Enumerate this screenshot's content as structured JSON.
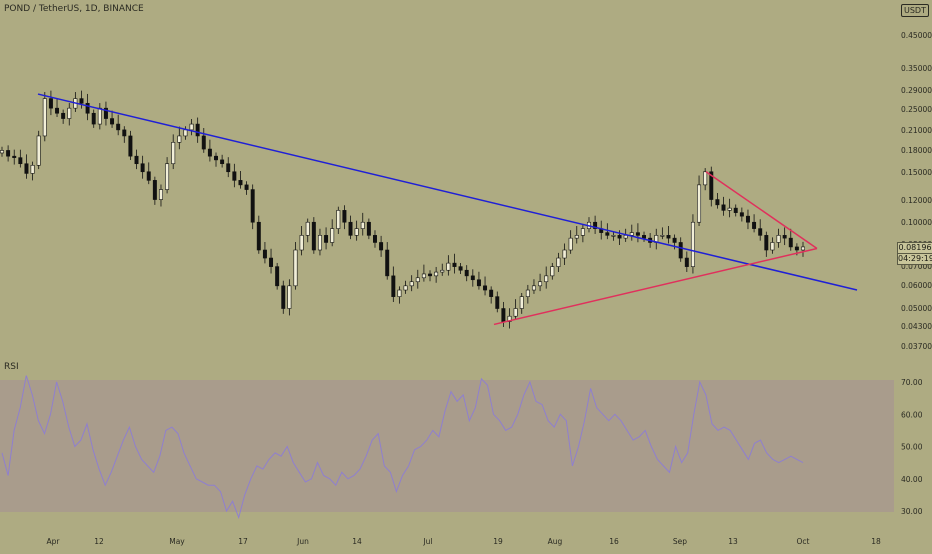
{
  "symbol_title": "POND / TetherUS, 1D, BINANCE",
  "currency": "USDT",
  "rsi_label": "RSI",
  "current_price": "0.08196",
  "countdown": "04:29:19",
  "colors": {
    "background": "#aeab82",
    "rsi_band": "#a99c8c",
    "rsi_line": "#8f7fcf",
    "descending_trendline": "#1f1fd6",
    "triangle_lines": "#e0305c",
    "candle": "#111111"
  },
  "chart_data": [
    {
      "type": "candlestick",
      "title": "POND / TetherUS, 1D, BINANCE",
      "scale": "log",
      "y_ticks": [
        "0.45000",
        "0.35000",
        "0.29000",
        "0.25000",
        "0.21000",
        "0.18000",
        "0.15000",
        "0.12000",
        "0.10000",
        "0.08000",
        "0.07000",
        "0.06000",
        "0.05000",
        "0.04300",
        "0.03700"
      ],
      "x_ticks": [
        "Apr",
        "12",
        "May",
        "17",
        "Jun",
        "14",
        "Jul",
        "19",
        "Aug",
        "16",
        "Sep",
        "13",
        "Oct",
        "18"
      ],
      "ylim": [
        0.034,
        0.5
      ],
      "grid": false,
      "close_approx": [
        0.178,
        0.17,
        0.168,
        0.16,
        0.148,
        0.158,
        0.2,
        0.27,
        0.25,
        0.24,
        0.23,
        0.25,
        0.27,
        0.26,
        0.24,
        0.22,
        0.25,
        0.23,
        0.22,
        0.21,
        0.2,
        0.17,
        0.16,
        0.15,
        0.14,
        0.12,
        0.13,
        0.16,
        0.19,
        0.2,
        0.21,
        0.22,
        0.2,
        0.18,
        0.17,
        0.165,
        0.16,
        0.15,
        0.14,
        0.135,
        0.13,
        0.1,
        0.08,
        0.075,
        0.07,
        0.06,
        0.05,
        0.06,
        0.08,
        0.09,
        0.1,
        0.08,
        0.09,
        0.085,
        0.095,
        0.11,
        0.1,
        0.09,
        0.095,
        0.1,
        0.09,
        0.085,
        0.08,
        0.065,
        0.055,
        0.058,
        0.06,
        0.062,
        0.064,
        0.066,
        0.065,
        0.067,
        0.068,
        0.072,
        0.07,
        0.068,
        0.065,
        0.063,
        0.06,
        0.058,
        0.055,
        0.05,
        0.045,
        0.047,
        0.05,
        0.055,
        0.058,
        0.06,
        0.062,
        0.065,
        0.07,
        0.075,
        0.08,
        0.088,
        0.09,
        0.095,
        0.1,
        0.095,
        0.092,
        0.09,
        0.09,
        0.088,
        0.09,
        0.092,
        0.09,
        0.088,
        0.085,
        0.09,
        0.09,
        0.088,
        0.085,
        0.075,
        0.07,
        0.1,
        0.135,
        0.15,
        0.12,
        0.115,
        0.11,
        0.112,
        0.108,
        0.105,
        0.1,
        0.095,
        0.09,
        0.08,
        0.085,
        0.09,
        0.088,
        0.082,
        0.08,
        0.082
      ],
      "trendlines": [
        {
          "name": "descending resistance",
          "from": {
            "x": "Mar 28",
            "y": 0.28
          },
          "to": {
            "x": "Oct 20",
            "y": 0.058
          }
        },
        {
          "name": "triangle support",
          "from": {
            "x": "Jul 22",
            "y": 0.044
          },
          "to": {
            "x": "Oct 2",
            "y": 0.081
          }
        },
        {
          "name": "triangle resistance",
          "from": {
            "x": "Sep 10",
            "y": 0.15
          },
          "to": {
            "x": "Oct 2",
            "y": 0.081
          }
        }
      ]
    },
    {
      "type": "line",
      "title": "RSI",
      "y_ticks": [
        "70.00",
        "60.00",
        "50.00",
        "40.00",
        "30.00"
      ],
      "ylim": [
        25,
        75
      ],
      "band": [
        30,
        70
      ],
      "values": [
        48,
        41,
        55,
        62,
        72,
        66,
        58,
        54,
        60,
        70,
        64,
        56,
        50,
        52,
        57,
        49,
        43,
        38,
        42,
        47,
        52,
        56,
        50,
        46,
        44,
        42,
        47,
        55,
        56,
        54,
        48,
        44,
        40,
        39,
        38,
        38,
        36,
        30,
        33,
        28,
        35,
        40,
        44,
        43,
        46,
        48,
        47,
        50,
        45,
        42,
        39,
        40,
        45,
        41,
        40,
        38,
        42,
        40,
        41,
        43,
        47,
        52,
        54,
        44,
        42,
        36,
        41,
        44,
        49,
        50,
        52,
        55,
        53,
        61,
        67,
        64,
        66,
        58,
        62,
        71,
        69,
        60,
        58,
        55,
        56,
        60,
        66,
        70,
        64,
        63,
        58,
        56,
        60,
        58,
        44,
        50,
        58,
        68,
        62,
        60,
        58,
        60,
        58,
        55,
        52,
        53,
        55,
        50,
        46,
        44,
        42,
        50,
        45,
        48,
        60,
        70,
        66,
        57,
        55,
        56,
        55,
        52,
        49,
        46,
        51,
        52,
        48,
        46,
        45,
        46,
        47,
        46,
        45
      ]
    }
  ]
}
